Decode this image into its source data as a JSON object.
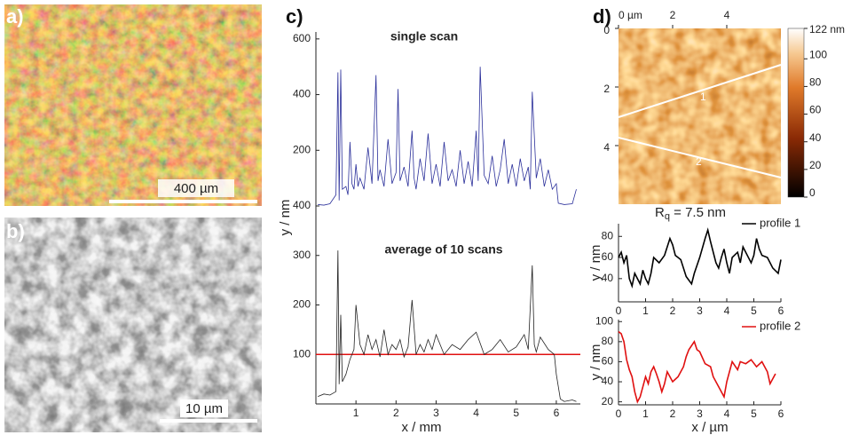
{
  "images": [
    {
      "panel": "a)",
      "scale_bar": "400 µm"
    },
    {
      "panel": "b)",
      "scale_bar": "10 µm"
    }
  ],
  "chart_data": [
    {
      "type": "line",
      "panel": "c)",
      "title": "single scan",
      "xlim": [
        0,
        6.6
      ],
      "ylim": [
        0,
        625
      ],
      "yticks": [
        200,
        400,
        600
      ],
      "x": [
        0.05,
        0.2,
        0.35,
        0.5,
        0.55,
        0.58,
        0.62,
        0.66,
        0.75,
        0.8,
        0.85,
        0.9,
        0.95,
        1.0,
        1.05,
        1.1,
        1.2,
        1.3,
        1.4,
        1.5,
        1.55,
        1.6,
        1.7,
        1.8,
        1.9,
        2.0,
        2.05,
        2.1,
        2.2,
        2.3,
        2.4,
        2.45,
        2.5,
        2.6,
        2.7,
        2.8,
        2.9,
        3.0,
        3.1,
        3.2,
        3.3,
        3.4,
        3.5,
        3.6,
        3.7,
        3.8,
        3.9,
        4.0,
        4.05,
        4.1,
        4.2,
        4.3,
        4.4,
        4.5,
        4.6,
        4.7,
        4.8,
        4.9,
        5.0,
        5.1,
        5.2,
        5.3,
        5.35,
        5.4,
        5.5,
        5.6,
        5.7,
        5.8,
        5.9,
        6.0,
        6.05,
        6.2,
        6.4,
        6.5
      ],
      "series": [
        {
          "color": "#2a2f9a",
          "values": [
            5,
            3,
            8,
            40,
            480,
            20,
            490,
            60,
            70,
            40,
            230,
            80,
            60,
            150,
            70,
            100,
            60,
            210,
            80,
            470,
            90,
            130,
            70,
            240,
            80,
            120,
            420,
            90,
            140,
            70,
            270,
            100,
            60,
            170,
            90,
            260,
            80,
            150,
            70,
            230,
            90,
            130,
            70,
            200,
            80,
            160,
            70,
            270,
            90,
            500,
            110,
            80,
            180,
            70,
            130,
            240,
            80,
            150,
            70,
            170,
            90,
            140,
            60,
            410,
            100,
            170,
            70,
            130,
            60,
            80,
            10,
            5,
            8,
            60
          ]
        }
      ]
    },
    {
      "type": "line",
      "title": "average of 10 scans",
      "x_label": "x / mm",
      "y_label": "y / nm",
      "xlim": [
        0,
        6.6
      ],
      "ylim": [
        0,
        400
      ],
      "xticks": [
        1,
        2,
        3,
        4,
        5,
        6
      ],
      "yticks": [
        100,
        200,
        300,
        400
      ],
      "hline": {
        "value": 100,
        "color": "#e01010"
      },
      "x": [
        0.05,
        0.2,
        0.35,
        0.5,
        0.55,
        0.58,
        0.62,
        0.66,
        0.75,
        0.85,
        0.95,
        1.0,
        1.1,
        1.2,
        1.3,
        1.4,
        1.5,
        1.6,
        1.7,
        1.8,
        1.9,
        2.0,
        2.1,
        2.2,
        2.3,
        2.4,
        2.5,
        2.6,
        2.7,
        2.8,
        2.9,
        3.0,
        3.2,
        3.4,
        3.6,
        3.8,
        4.0,
        4.2,
        4.4,
        4.6,
        4.8,
        5.0,
        5.2,
        5.3,
        5.4,
        5.45,
        5.5,
        5.6,
        5.8,
        5.95,
        6.0,
        6.1,
        6.2,
        6.4,
        6.5
      ],
      "series": [
        {
          "color": "#222222",
          "values": [
            15,
            20,
            18,
            25,
            310,
            40,
            180,
            45,
            60,
            90,
            110,
            200,
            120,
            100,
            140,
            110,
            130,
            95,
            150,
            100,
            120,
            110,
            130,
            95,
            115,
            210,
            100,
            120,
            105,
            130,
            110,
            140,
            100,
            120,
            110,
            130,
            145,
            100,
            110,
            130,
            105,
            115,
            140,
            110,
            280,
            120,
            105,
            135,
            110,
            100,
            60,
            10,
            5,
            8,
            5
          ]
        }
      ]
    },
    {
      "type": "image",
      "panel": "d)",
      "xlim": [
        0,
        6
      ],
      "ylim": [
        0,
        6
      ],
      "y_inverted": true,
      "xticks": [
        {
          "value": 0,
          "label": "0 µm"
        },
        2,
        4
      ],
      "yticks": [
        0,
        2,
        4
      ],
      "clim": [
        0,
        122
      ],
      "cticks": [
        0,
        20,
        40,
        60,
        80,
        100,
        {
          "value": 122,
          "label": "122 nm"
        }
      ],
      "profile_labels": [
        "1",
        "2"
      ],
      "annotation": {
        "symbol": "R",
        "subscript": "q",
        "text": " = 7.5 nm"
      }
    },
    {
      "type": "line",
      "y_label": "y / nm",
      "xlim": [
        0,
        6
      ],
      "ylim": [
        18,
        92
      ],
      "xticks": [
        0,
        1,
        2,
        3,
        4,
        5,
        6
      ],
      "yticks": [
        40,
        60,
        80
      ],
      "legend": "upper right",
      "x": [
        0,
        0.1,
        0.2,
        0.3,
        0.4,
        0.5,
        0.6,
        0.7,
        0.8,
        0.9,
        1.0,
        1.1,
        1.2,
        1.3,
        1.5,
        1.7,
        1.9,
        2.0,
        2.1,
        2.3,
        2.5,
        2.7,
        2.8,
        3.0,
        3.2,
        3.3,
        3.4,
        3.6,
        3.7,
        3.8,
        3.9,
        4.0,
        4.1,
        4.2,
        4.4,
        4.5,
        4.6,
        4.8,
        4.9,
        5.0,
        5.1,
        5.2,
        5.3,
        5.5,
        5.7,
        5.9,
        6.0
      ],
      "series": [
        {
          "name": "profile 1",
          "color": "#000000",
          "values": [
            60,
            65,
            55,
            62,
            40,
            33,
            45,
            40,
            35,
            48,
            40,
            35,
            45,
            60,
            55,
            62,
            78,
            72,
            62,
            58,
            42,
            35,
            45,
            60,
            78,
            86,
            75,
            55,
            50,
            60,
            68,
            55,
            45,
            60,
            65,
            55,
            70,
            60,
            55,
            62,
            78,
            68,
            62,
            60,
            50,
            45,
            58
          ]
        }
      ]
    },
    {
      "type": "line",
      "x_label": "x / µm",
      "y_label": "y / nm",
      "xlim": [
        0,
        6
      ],
      "ylim": [
        17,
        102
      ],
      "xticks": [
        0,
        1,
        2,
        3,
        4,
        5,
        6
      ],
      "yticks": [
        20,
        40,
        60,
        80,
        100
      ],
      "legend": "upper right",
      "x": [
        0,
        0.1,
        0.2,
        0.3,
        0.4,
        0.5,
        0.6,
        0.7,
        0.8,
        0.9,
        1.0,
        1.1,
        1.2,
        1.3,
        1.4,
        1.5,
        1.6,
        1.7,
        1.8,
        1.9,
        2.0,
        2.2,
        2.4,
        2.5,
        2.6,
        2.8,
        2.9,
        3.0,
        3.2,
        3.4,
        3.5,
        3.7,
        3.9,
        4.0,
        4.2,
        4.4,
        4.5,
        4.7,
        4.9,
        5.1,
        5.3,
        5.5,
        5.6,
        5.8
      ],
      "series": [
        {
          "name": "profile 2",
          "color": "#e01010",
          "values": [
            90,
            88,
            80,
            62,
            52,
            45,
            30,
            20,
            25,
            35,
            45,
            38,
            50,
            55,
            48,
            40,
            30,
            38,
            50,
            45,
            40,
            45,
            55,
            65,
            72,
            80,
            72,
            70,
            58,
            55,
            45,
            35,
            25,
            40,
            60,
            52,
            60,
            58,
            62,
            55,
            60,
            50,
            38,
            48
          ]
        }
      ]
    }
  ]
}
